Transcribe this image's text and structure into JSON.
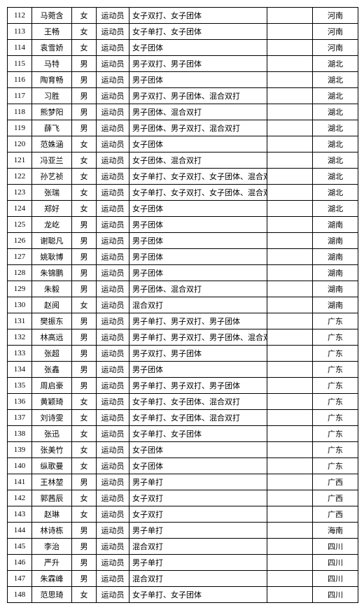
{
  "rows": [
    {
      "id": "112",
      "name": "马菀含",
      "sex": "女",
      "role": "运动员",
      "event": "女子双打、女子团体",
      "prov": "河南"
    },
    {
      "id": "113",
      "name": "王畅",
      "sex": "女",
      "role": "运动员",
      "event": "女子单打、女子团体",
      "prov": "河南"
    },
    {
      "id": "114",
      "name": "袁雪娇",
      "sex": "女",
      "role": "运动员",
      "event": "女子团体",
      "prov": "河南"
    },
    {
      "id": "115",
      "name": "马特",
      "sex": "男",
      "role": "运动员",
      "event": "男子双打、男子团体",
      "prov": "湖北"
    },
    {
      "id": "116",
      "name": "陶育畅",
      "sex": "男",
      "role": "运动员",
      "event": "男子团体",
      "prov": "湖北"
    },
    {
      "id": "117",
      "name": "习胜",
      "sex": "男",
      "role": "运动员",
      "event": "男子双打、男子团体、混合双打",
      "prov": "湖北"
    },
    {
      "id": "118",
      "name": "熊梦阳",
      "sex": "男",
      "role": "运动员",
      "event": "男子团体、混合双打",
      "prov": "湖北"
    },
    {
      "id": "119",
      "name": "薛飞",
      "sex": "男",
      "role": "运动员",
      "event": "男子团体、男子双打、混合双打",
      "prov": "湖北"
    },
    {
      "id": "120",
      "name": "范姝涵",
      "sex": "女",
      "role": "运动员",
      "event": "女子团体",
      "prov": "湖北"
    },
    {
      "id": "121",
      "name": "冯亚兰",
      "sex": "女",
      "role": "运动员",
      "event": "女子团体、混合双打",
      "prov": "湖北"
    },
    {
      "id": "122",
      "name": "孙艺祯",
      "sex": "女",
      "role": "运动员",
      "event": "女子单打、女子双打、女子团体、混合双打",
      "prov": "湖北"
    },
    {
      "id": "123",
      "name": "张瑞",
      "sex": "女",
      "role": "运动员",
      "event": "女子单打、女子双打、女子团体、混合双打",
      "prov": "湖北"
    },
    {
      "id": "124",
      "name": "郑好",
      "sex": "女",
      "role": "运动员",
      "event": "女子团体",
      "prov": "湖北"
    },
    {
      "id": "125",
      "name": "龙屹",
      "sex": "男",
      "role": "运动员",
      "event": "男子团体",
      "prov": "湖南"
    },
    {
      "id": "126",
      "name": "谢聪凡",
      "sex": "男",
      "role": "运动员",
      "event": "男子团体",
      "prov": "湖南"
    },
    {
      "id": "127",
      "name": "姚耿博",
      "sex": "男",
      "role": "运动员",
      "event": "男子团体",
      "prov": "湖南"
    },
    {
      "id": "128",
      "name": "朱锦鹏",
      "sex": "男",
      "role": "运动员",
      "event": "男子团体",
      "prov": "湖南"
    },
    {
      "id": "129",
      "name": "朱毅",
      "sex": "男",
      "role": "运动员",
      "event": "男子团体、混合双打",
      "prov": "湖南"
    },
    {
      "id": "130",
      "name": "赵阅",
      "sex": "女",
      "role": "运动员",
      "event": "混合双打",
      "prov": "湖南"
    },
    {
      "id": "131",
      "name": "樊振东",
      "sex": "男",
      "role": "运动员",
      "event": "男子单打、男子双打、男子团体",
      "prov": "广东"
    },
    {
      "id": "132",
      "name": "林高远",
      "sex": "男",
      "role": "运动员",
      "event": "男子单打、男子双打、男子团体、混合双打",
      "prov": "广东"
    },
    {
      "id": "133",
      "name": "张超",
      "sex": "男",
      "role": "运动员",
      "event": "男子双打、男子团体",
      "prov": "广东"
    },
    {
      "id": "134",
      "name": "张鑫",
      "sex": "男",
      "role": "运动员",
      "event": "男子团体",
      "prov": "广东"
    },
    {
      "id": "135",
      "name": "周启豪",
      "sex": "男",
      "role": "运动员",
      "event": "男子单打、男子双打、男子团体",
      "prov": "广东"
    },
    {
      "id": "136",
      "name": "黄颖琦",
      "sex": "女",
      "role": "运动员",
      "event": "女子单打、女子团体、混合双打",
      "prov": "广东"
    },
    {
      "id": "137",
      "name": "刘诗雯",
      "sex": "女",
      "role": "运动员",
      "event": "女子单打、女子团体、混合双打",
      "prov": "广东"
    },
    {
      "id": "138",
      "name": "张迅",
      "sex": "女",
      "role": "运动员",
      "event": "女子单打、女子团体",
      "prov": "广东"
    },
    {
      "id": "139",
      "name": "张美竹",
      "sex": "女",
      "role": "运动员",
      "event": "女子团体",
      "prov": "广东"
    },
    {
      "id": "140",
      "name": "纵歌曼",
      "sex": "女",
      "role": "运动员",
      "event": "女子团体",
      "prov": "广东"
    },
    {
      "id": "141",
      "name": "王林堃",
      "sex": "男",
      "role": "运动员",
      "event": "男子单打",
      "prov": "广西"
    },
    {
      "id": "142",
      "name": "郭茜辰",
      "sex": "女",
      "role": "运动员",
      "event": "女子双打",
      "prov": "广西"
    },
    {
      "id": "143",
      "name": "赵琳",
      "sex": "女",
      "role": "运动员",
      "event": "女子双打",
      "prov": "广西"
    },
    {
      "id": "144",
      "name": "林诗栋",
      "sex": "男",
      "role": "运动员",
      "event": "男子单打",
      "prov": "海南"
    },
    {
      "id": "145",
      "name": "李治",
      "sex": "男",
      "role": "运动员",
      "event": "混合双打",
      "prov": "四川"
    },
    {
      "id": "146",
      "name": "严升",
      "sex": "男",
      "role": "运动员",
      "event": "男子单打",
      "prov": "四川"
    },
    {
      "id": "147",
      "name": "朱霖峰",
      "sex": "男",
      "role": "运动员",
      "event": "混合双打",
      "prov": "四川"
    },
    {
      "id": "148",
      "name": "范思琦",
      "sex": "女",
      "role": "运动员",
      "event": "女子单打、女子团体",
      "prov": "四川"
    }
  ]
}
